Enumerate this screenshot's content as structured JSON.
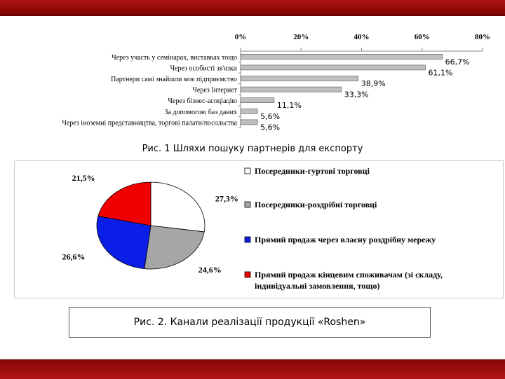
{
  "chart_data": [
    {
      "type": "bar",
      "orientation": "horizontal",
      "categories": [
        "Через участь у семінарах, виставках тощо",
        "Через особисті зв'язки",
        "Партнери самі знайшли моє підприємство",
        "Через Інтернет",
        "Через бізнес-асоціацію",
        "За допомогою баз даних",
        "Через іноземні представництва, торгові палати/посольства"
      ],
      "values": [
        66.7,
        61.1,
        38.9,
        33.3,
        11.1,
        5.6,
        5.6
      ],
      "value_labels": [
        "66,7%",
        "61,1%",
        "38,9%",
        "33,3%",
        "11,1%",
        "5,6%",
        "5,6%"
      ],
      "xlim": [
        0,
        80
      ],
      "ticks": [
        "0%",
        "20%",
        "40%",
        "60%",
        "80%"
      ],
      "axis_position": "top",
      "bar_color": "#bfbfbf",
      "title": "Рис. 1 Шляхи пошуку партнерів для експорту"
    },
    {
      "type": "pie",
      "slices": [
        {
          "name": "Посередники-гуртові торговці",
          "value": 27.3,
          "label": "27,3%",
          "color": "#ffffff"
        },
        {
          "name": "Посередники-роздрібні торговці",
          "value": 24.6,
          "label": "24,6%",
          "color": "#a6a6a6"
        },
        {
          "name": "Прямий продаж через власну роздрібну мережу",
          "value": 26.6,
          "label": "26,6%",
          "color": "#0a1ee8"
        },
        {
          "name": "Прямий продаж кінцевим споживачам (зі складу, індивідуальні замовлення, тощо)",
          "value": 21.5,
          "label": "21,5%",
          "color": "#f00000"
        }
      ],
      "legend_lines": [
        [
          "Посередники-гуртові торговці"
        ],
        [
          "Посередники-роздрібні торговці"
        ],
        [
          "Прямий продаж через власну роздрібну мережу"
        ],
        [
          "Прямий продаж кінцевим споживачам (зі складу,",
          "індивідуальні замовлення, тощо)"
        ]
      ],
      "legend_position": "right",
      "title": "Рис. 2. Канали реалізації продукції «Roshen»"
    }
  ]
}
